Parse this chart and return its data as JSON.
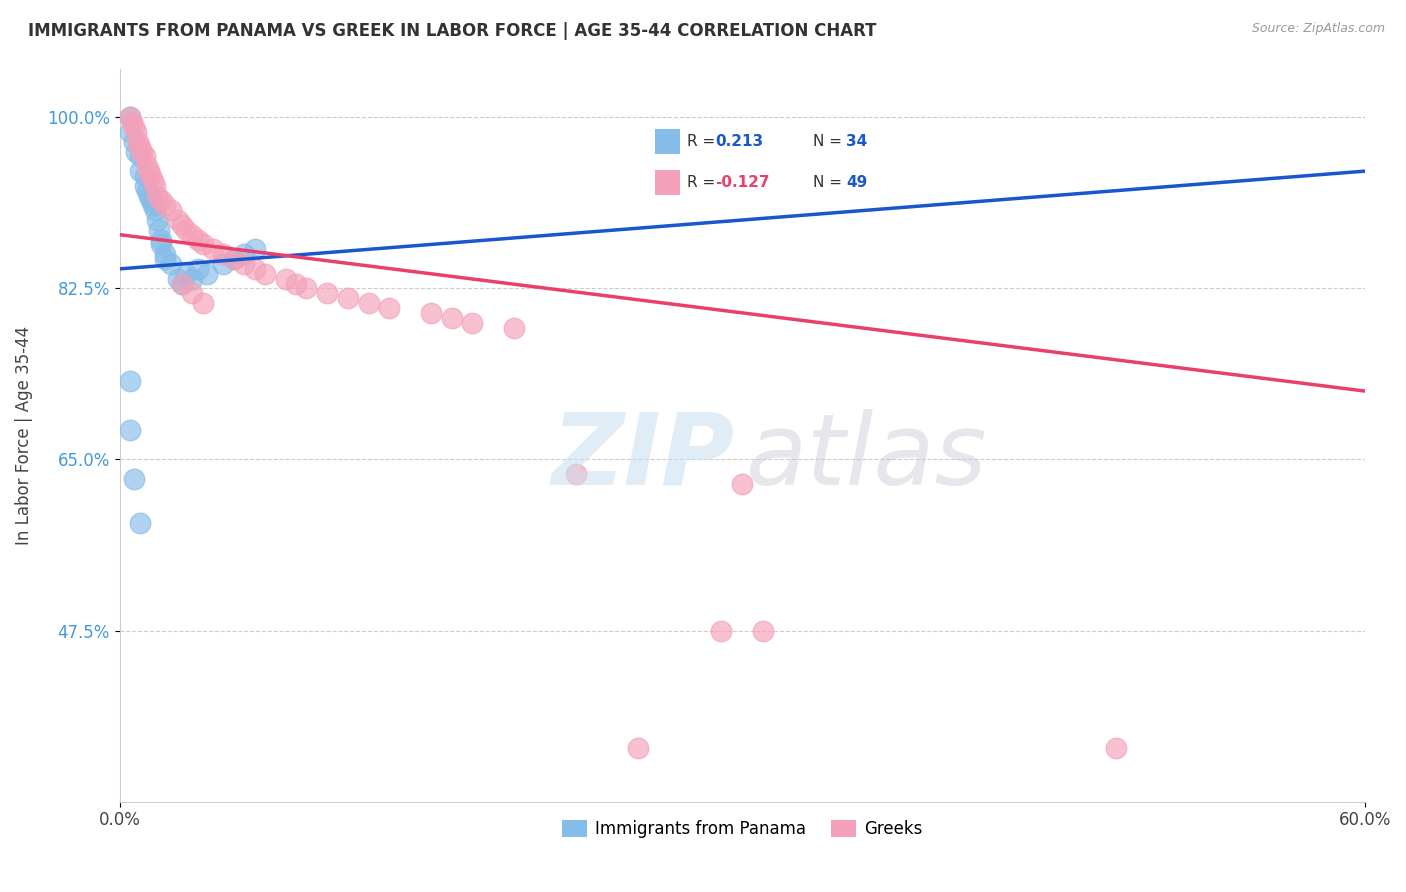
{
  "title": "IMMIGRANTS FROM PANAMA VS GREEK IN LABOR FORCE | AGE 35-44 CORRELATION CHART",
  "source": "Source: ZipAtlas.com",
  "ylabel": "In Labor Force | Age 35-44",
  "xlim": [
    0.0,
    0.6
  ],
  "ylim": [
    0.3,
    1.05
  ],
  "xticks": [
    0.0,
    0.6
  ],
  "xticklabels": [
    "0.0%",
    "60.0%"
  ],
  "ytick_positions": [
    0.475,
    0.65,
    0.825,
    1.0
  ],
  "ytick_labels": [
    "47.5%",
    "65.0%",
    "82.5%",
    "100.0%"
  ],
  "panama_color": "#85bce8",
  "greek_color": "#f4a0b8",
  "panama_line_color": "#1a56cc",
  "greek_line_color": "#e8406a",
  "legend_panama_label": "Immigrants from Panama",
  "legend_greek_label": "Greeks",
  "r_panama": "0.213",
  "n_panama": "34",
  "r_greek": "-0.127",
  "n_greek": "49",
  "panama_x": [
    0.005,
    0.005,
    0.007,
    0.008,
    0.01,
    0.01,
    0.012,
    0.012,
    0.013,
    0.014,
    0.015,
    0.016,
    0.017,
    0.018,
    0.019,
    0.02,
    0.02,
    0.022,
    0.022,
    0.025,
    0.028,
    0.03,
    0.032,
    0.035,
    0.038,
    0.042,
    0.05,
    0.055,
    0.06,
    0.065,
    0.005,
    0.005,
    0.007,
    0.01
  ],
  "panama_y": [
    1.0,
    0.985,
    0.975,
    0.965,
    0.96,
    0.945,
    0.94,
    0.93,
    0.925,
    0.92,
    0.915,
    0.91,
    0.905,
    0.895,
    0.885,
    0.875,
    0.87,
    0.86,
    0.855,
    0.85,
    0.835,
    0.83,
    0.84,
    0.835,
    0.845,
    0.84,
    0.85,
    0.855,
    0.86,
    0.865,
    0.73,
    0.68,
    0.63,
    0.585
  ],
  "greek_x": [
    0.005,
    0.006,
    0.007,
    0.008,
    0.009,
    0.01,
    0.011,
    0.012,
    0.013,
    0.014,
    0.015,
    0.016,
    0.017,
    0.018,
    0.02,
    0.022,
    0.025,
    0.028,
    0.03,
    0.032,
    0.035,
    0.038,
    0.04,
    0.045,
    0.05,
    0.055,
    0.06,
    0.065,
    0.07,
    0.08,
    0.085,
    0.09,
    0.1,
    0.11,
    0.12,
    0.13,
    0.15,
    0.16,
    0.17,
    0.19,
    0.03,
    0.035,
    0.04,
    0.22,
    0.3,
    0.31,
    0.29,
    0.25,
    0.48
  ],
  "greek_y": [
    1.0,
    0.995,
    0.99,
    0.985,
    0.975,
    0.97,
    0.965,
    0.96,
    0.95,
    0.945,
    0.94,
    0.935,
    0.93,
    0.92,
    0.915,
    0.91,
    0.905,
    0.895,
    0.89,
    0.885,
    0.88,
    0.875,
    0.87,
    0.865,
    0.86,
    0.855,
    0.85,
    0.845,
    0.84,
    0.835,
    0.83,
    0.825,
    0.82,
    0.815,
    0.81,
    0.805,
    0.8,
    0.795,
    0.79,
    0.785,
    0.83,
    0.82,
    0.81,
    0.635,
    0.625,
    0.475,
    0.475,
    0.355,
    0.355
  ],
  "panama_trendline_x": [
    0.0,
    0.6
  ],
  "panama_trendline_y": [
    0.845,
    0.945
  ],
  "greek_trendline_x": [
    0.0,
    0.6
  ],
  "greek_trendline_y": [
    0.88,
    0.72
  ]
}
